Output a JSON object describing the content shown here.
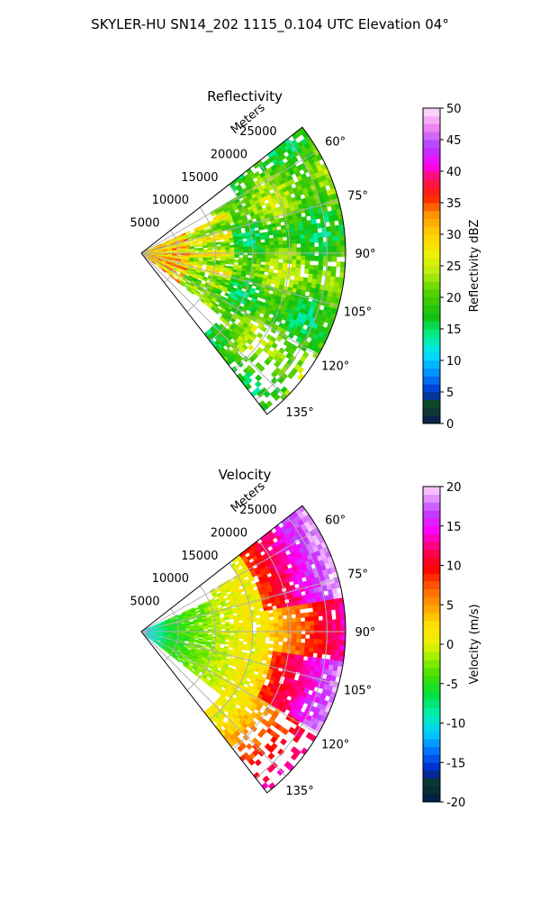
{
  "figure": {
    "suptitle": "SKYLER-HU  SN14_202  1115_0.104 UTC Elevation 04°"
  },
  "chart_data": [
    {
      "type": "heatmap",
      "projection": "polar-sector",
      "title": "Reflectivity",
      "radial_label": "Meters",
      "radial_ticks": [
        5000,
        10000,
        15000,
        20000,
        25000
      ],
      "radial_tick_labels": [
        "5000",
        "10000",
        "15000",
        "20000",
        "25000"
      ],
      "azimuth_range_deg": [
        52,
        142
      ],
      "azimuth_ticks": [
        60,
        75,
        90,
        105,
        120,
        135
      ],
      "azimuth_tick_labels": [
        "60°",
        "75°",
        "90°",
        "105°",
        "120°",
        "135°"
      ],
      "grid": true,
      "colorbar": {
        "label": "Reflectivity dBZ",
        "range": [
          0,
          50
        ],
        "ticks": [
          0,
          5,
          10,
          15,
          20,
          25,
          30,
          35,
          40,
          45,
          50
        ],
        "tick_labels": [
          "0",
          "5",
          "10",
          "15",
          "20",
          "25",
          "30",
          "35",
          "40",
          "45",
          "50"
        ],
        "colormap": "NWSRef"
      }
    },
    {
      "type": "heatmap",
      "projection": "polar-sector",
      "title": "Velocity",
      "radial_label": "Meters",
      "radial_ticks": [
        5000,
        10000,
        15000,
        20000,
        25000
      ],
      "radial_tick_labels": [
        "5000",
        "10000",
        "15000",
        "20000",
        "25000"
      ],
      "azimuth_range_deg": [
        52,
        142
      ],
      "azimuth_ticks": [
        60,
        75,
        90,
        105,
        120,
        135
      ],
      "azimuth_tick_labels": [
        "60°",
        "75°",
        "90°",
        "105°",
        "120°",
        "135°"
      ],
      "grid": true,
      "colorbar": {
        "label": "Velocity (m/s)",
        "range": [
          -20,
          20
        ],
        "ticks": [
          -20,
          -15,
          -10,
          -5,
          0,
          5,
          10,
          15,
          20
        ],
        "tick_labels": [
          "-20",
          "-15",
          "-10",
          "-5",
          "0",
          "5",
          "10",
          "15",
          "20"
        ],
        "colormap": "NWSVel"
      }
    }
  ]
}
